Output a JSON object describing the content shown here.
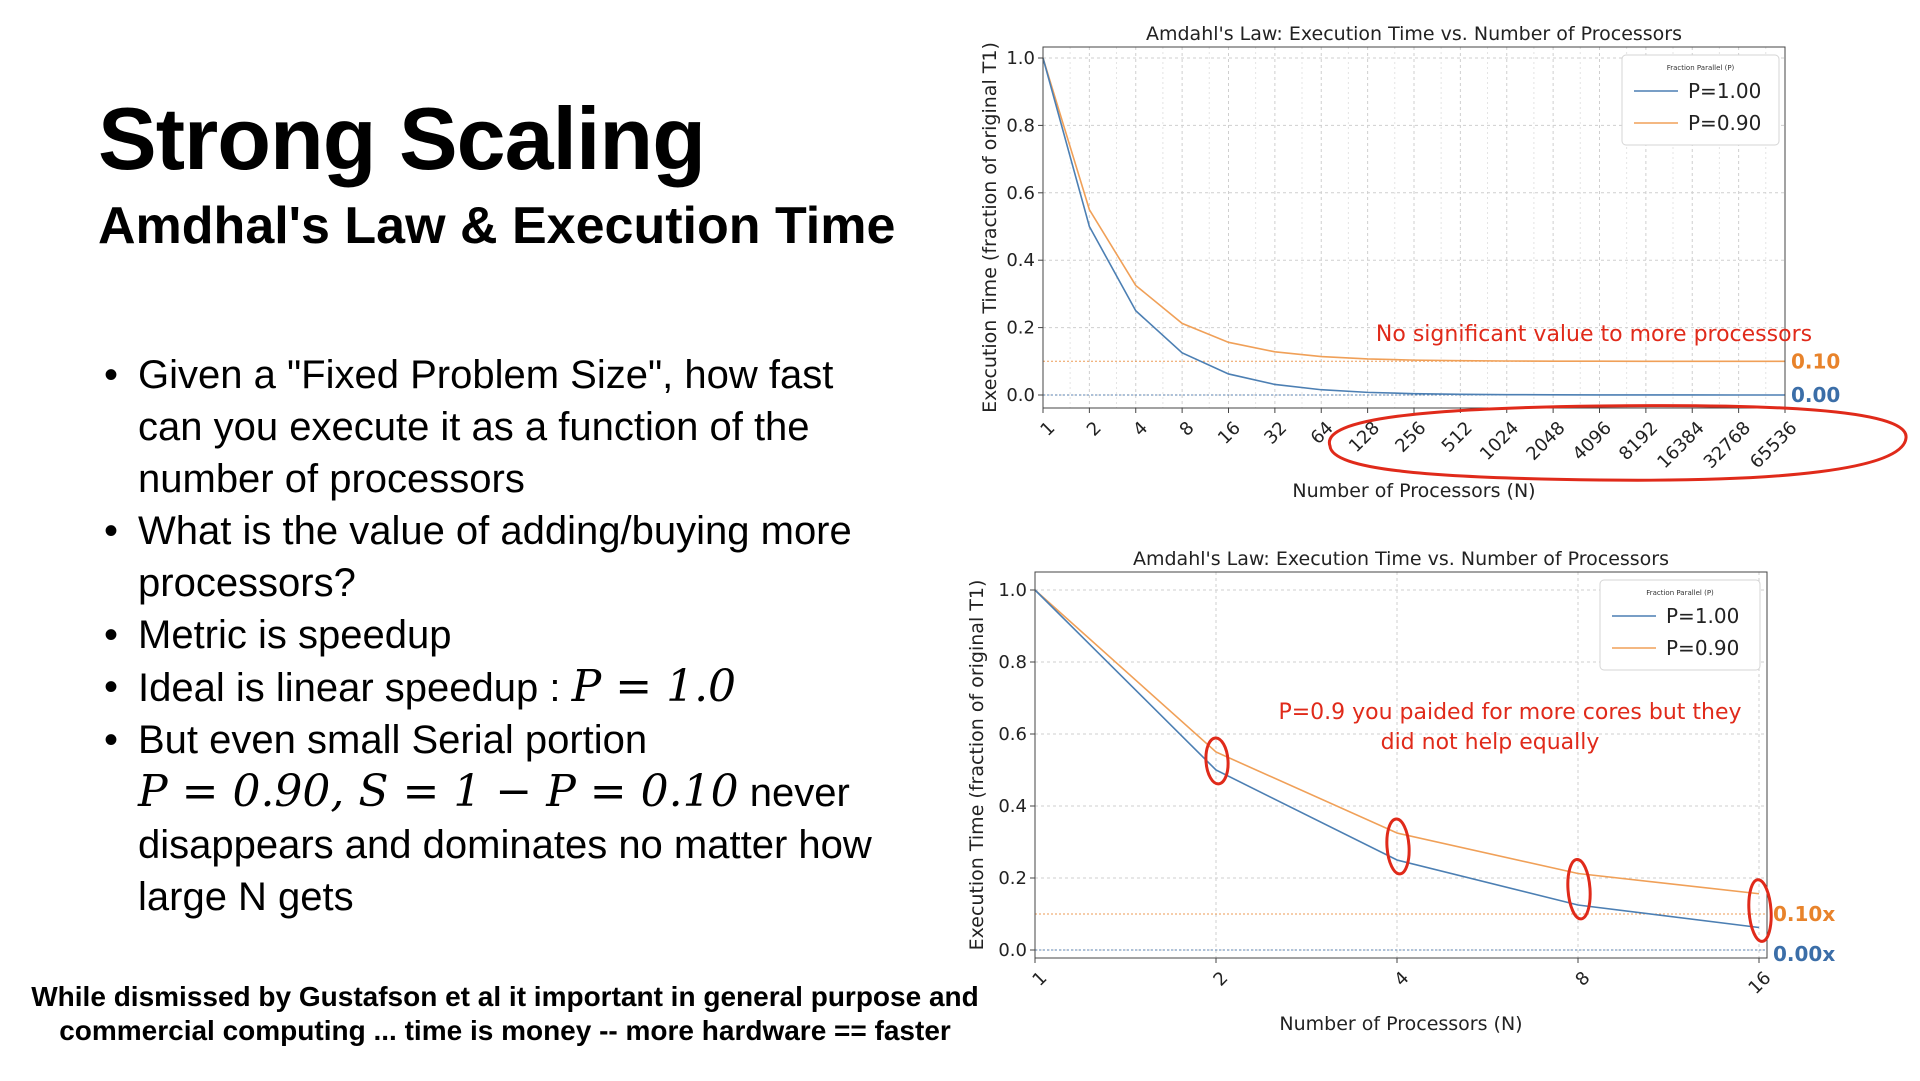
{
  "slide": {
    "title": "Strong Scaling",
    "subtitle": "Amdhal's Law & Execution Time",
    "bullets": [
      "Given a \"Fixed Problem Size\", how fast can you execute it as a function of the number of processors",
      "What is the value of adding/buying more processors?",
      "Metric is speedup"
    ],
    "bullet4_text": "Ideal is linear speedup : ",
    "bullet4_math": "P = 1.0",
    "bullet5_line1": "But even small Serial portion",
    "bullet5_math": "P = 0.90, S = 1 − P = 0.10",
    "bullet5_rest": " never disappears and dominates no matter how large N gets",
    "footer_line1": "While dismissed by Gustafson et al it important in general purpose and",
    "footer_line2": "commercial computing ... time is money -- more hardware == faster"
  },
  "chart_data": [
    {
      "type": "line",
      "title": "Amdahl's Law: Execution Time vs. Number of Processors",
      "xlabel": "Number of Processors (N)",
      "ylabel": "Execution Time (fraction of original T1)",
      "x_scale": "log2",
      "x": [
        1,
        2,
        4,
        8,
        16,
        32,
        64,
        128,
        256,
        512,
        1024,
        2048,
        4096,
        8192,
        16384,
        32768,
        65536
      ],
      "xticks": [
        "1",
        "2",
        "4",
        "8",
        "16",
        "32",
        "64",
        "128",
        "256",
        "512",
        "1024",
        "2048",
        "4096",
        "8192",
        "16384",
        "32768",
        "65536"
      ],
      "yticks": [
        "0.0",
        "0.2",
        "0.4",
        "0.6",
        "0.8",
        "1.0"
      ],
      "ylim": [
        0,
        1
      ],
      "grid": true,
      "legend": {
        "title": "Fraction Parallel (P)",
        "position": "top-right"
      },
      "series": [
        {
          "name": "P=1.00",
          "color": "#4c7fb3",
          "values": [
            1.0,
            0.5,
            0.25,
            0.125,
            0.0625,
            0.03125,
            0.015625,
            0.0078,
            0.0039,
            0.002,
            0.001,
            0.0005,
            0.0002,
            0.0001,
            0.0001,
            0.0,
            0.0
          ]
        },
        {
          "name": "P=0.90",
          "color": "#f0a058",
          "values": [
            1.0,
            0.55,
            0.325,
            0.2125,
            0.15625,
            0.1281,
            0.1141,
            0.107,
            0.1035,
            0.1018,
            0.1009,
            0.1004,
            0.1002,
            0.1001,
            0.1001,
            0.1,
            0.1
          ]
        }
      ],
      "reference_lines": [
        {
          "y": 0.1,
          "label": "0.10",
          "color": "#e8832b"
        },
        {
          "y": 0.0,
          "label": "0.00",
          "color": "#3b6ea8"
        }
      ],
      "annotation": "No significant value to more processors"
    },
    {
      "type": "line",
      "title": "Amdahl's Law: Execution Time vs. Number of Processors",
      "xlabel": "Number of Processors (N)",
      "ylabel": "Execution Time (fraction of original T1)",
      "x_scale": "log2",
      "x": [
        1,
        2,
        4,
        8,
        16
      ],
      "xticks": [
        "1",
        "2",
        "4",
        "8",
        "16"
      ],
      "yticks": [
        "0.0",
        "0.2",
        "0.4",
        "0.6",
        "0.8",
        "1.0"
      ],
      "ylim": [
        0,
        1
      ],
      "grid": true,
      "legend": {
        "title": "Fraction Parallel (P)",
        "position": "top-right"
      },
      "series": [
        {
          "name": "P=1.00",
          "color": "#4c7fb3",
          "values": [
            1.0,
            0.5,
            0.25,
            0.125,
            0.0625
          ]
        },
        {
          "name": "P=0.90",
          "color": "#f0a058",
          "values": [
            1.0,
            0.55,
            0.325,
            0.2125,
            0.15625
          ]
        }
      ],
      "reference_lines": [
        {
          "y": 0.1,
          "label": "0.10x",
          "color": "#e8832b"
        },
        {
          "y": 0.0,
          "label": "0.00x",
          "color": "#3b6ea8"
        }
      ],
      "annotation_lines": [
        "P=0.9 you paided for more cores but they",
        "did not help equally"
      ]
    }
  ]
}
